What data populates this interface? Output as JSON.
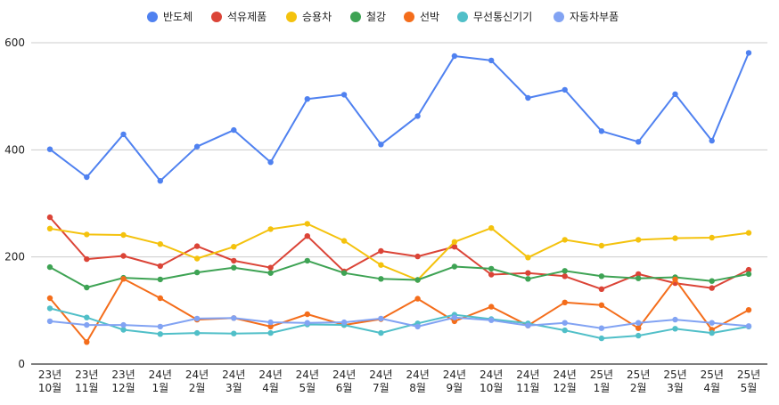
{
  "chart_data": {
    "type": "line",
    "title": "",
    "xlabel": "",
    "ylabel": "",
    "ylim": [
      0,
      600
    ],
    "yticks": [
      "0",
      "200",
      "400",
      "600"
    ],
    "grid": true,
    "legend_position": "top",
    "categories": [
      [
        "23년",
        "10월"
      ],
      [
        "23년",
        "11월"
      ],
      [
        "23년",
        "12월"
      ],
      [
        "24년",
        "1월"
      ],
      [
        "24년",
        "2월"
      ],
      [
        "24년",
        "3월"
      ],
      [
        "24년",
        "4월"
      ],
      [
        "24년",
        "5월"
      ],
      [
        "24년",
        "6월"
      ],
      [
        "24년",
        "7월"
      ],
      [
        "24년",
        "8월"
      ],
      [
        "24년",
        "9월"
      ],
      [
        "24년",
        "10월"
      ],
      [
        "24년",
        "11월"
      ],
      [
        "24년",
        "12월"
      ],
      [
        "25년",
        "1월"
      ],
      [
        "25년",
        "2월"
      ],
      [
        "25년",
        "3월"
      ],
      [
        "25년",
        "4월"
      ],
      [
        "25년",
        "5월"
      ]
    ],
    "series": [
      {
        "name": "반도체",
        "color": "#4f81f0",
        "values": [
          401,
          349,
          429,
          342,
          406,
          437,
          377,
          495,
          503,
          410,
          463,
          575,
          567,
          497,
          512,
          435,
          415,
          504,
          417,
          581
        ]
      },
      {
        "name": "석유제품",
        "color": "#db4437",
        "values": [
          274,
          196,
          202,
          183,
          220,
          193,
          180,
          239,
          173,
          211,
          201,
          219,
          167,
          170,
          164,
          140,
          168,
          151,
          142,
          176
        ]
      },
      {
        "name": "승용차",
        "color": "#f4c20d",
        "values": [
          253,
          242,
          241,
          224,
          197,
          219,
          252,
          262,
          230,
          185,
          157,
          228,
          254,
          199,
          232,
          221,
          232,
          235,
          236,
          245
        ]
      },
      {
        "name": "철강",
        "color": "#3ea354",
        "values": [
          181,
          143,
          161,
          158,
          171,
          180,
          170,
          193,
          170,
          159,
          157,
          182,
          178,
          159,
          174,
          164,
          160,
          162,
          155,
          168
        ]
      },
      {
        "name": "선박",
        "color": "#f46d1b",
        "values": [
          123,
          41,
          159,
          123,
          83,
          86,
          70,
          93,
          73,
          84,
          122,
          80,
          107,
          72,
          115,
          110,
          67,
          158,
          64,
          101
        ]
      },
      {
        "name": "무선통신기기",
        "color": "#50bfc8",
        "values": [
          104,
          87,
          64,
          56,
          58,
          57,
          58,
          74,
          73,
          58,
          76,
          92,
          84,
          76,
          63,
          48,
          53,
          66,
          58,
          70
        ]
      },
      {
        "name": "자동차부품",
        "color": "#82a3f3",
        "values": [
          80,
          73,
          73,
          70,
          85,
          86,
          78,
          77,
          78,
          85,
          70,
          87,
          82,
          72,
          77,
          67,
          77,
          83,
          77,
          71
        ]
      }
    ]
  }
}
